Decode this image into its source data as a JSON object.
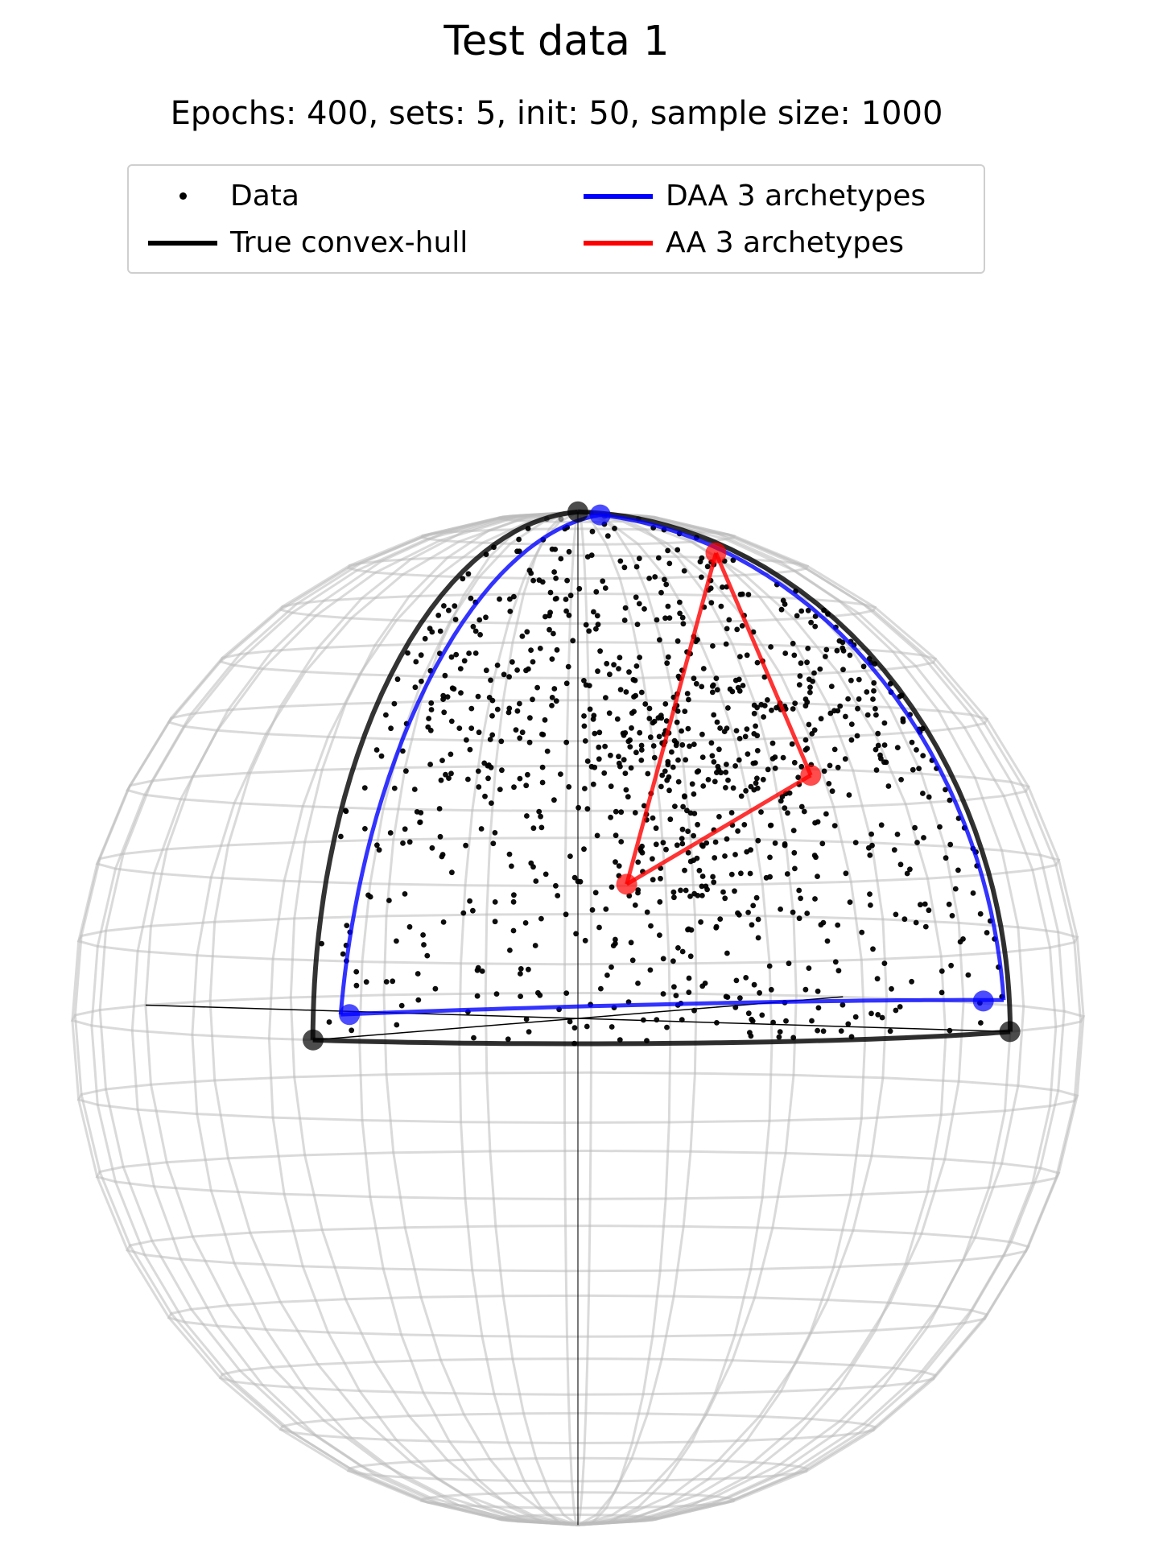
{
  "title": "Test data 1",
  "subtitle": "Epochs: 400, sets: 5, init: 50, sample size: 1000",
  "legend": {
    "items": [
      {
        "label": "Data",
        "kind": "marker",
        "color": "#000000"
      },
      {
        "label": "True convex-hull",
        "kind": "line",
        "color": "#000000"
      },
      {
        "label": "DAA 3 archetypes",
        "kind": "line",
        "color": "#0000ff"
      },
      {
        "label": "AA 3 archetypes",
        "kind": "line",
        "color": "#ff0000"
      }
    ]
  },
  "chart_data": {
    "type": "scatter",
    "projection": "3d-sphere",
    "sample_size": 1000,
    "colors": {
      "data": "#000000",
      "true_hull": "#000000",
      "daa": "#0000ff",
      "aa": "#ff0000",
      "wireframe": "#bbbbbb"
    },
    "true_convex_hull": {
      "name": "True convex-hull",
      "vertices_xyz": [
        [
          0,
          0,
          1
        ],
        [
          0.999,
          0,
          0
        ],
        [
          0,
          0.999,
          0
        ]
      ]
    },
    "daa_archetypes": {
      "name": "DAA 3 archetypes",
      "vertices_xyz": [
        [
          0.07,
          0.03,
          0.997
        ],
        [
          0.95,
          0.02,
          0.06
        ],
        [
          0.06,
          0.96,
          0.05
        ]
      ]
    },
    "aa_archetypes": {
      "name": "AA 3 archetypes",
      "vertices_xyz": [
        [
          0.35,
          0.05,
          0.93
        ],
        [
          0.45,
          0.55,
          0.3
        ],
        [
          0.6,
          0.1,
          0.5
        ]
      ]
    },
    "grid": true
  }
}
